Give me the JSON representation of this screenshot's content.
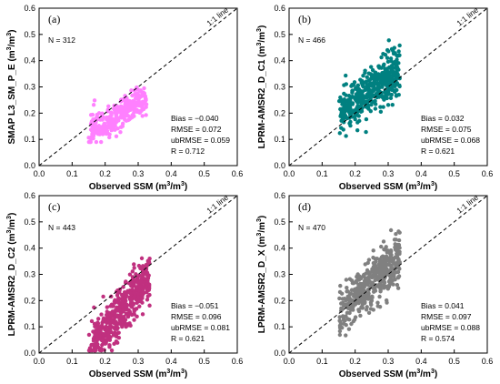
{
  "chart_data": [
    {
      "type": "scatter",
      "panel_label": "(a)",
      "n_label": "N = 312",
      "ylabel": "SMAP L3_SM_P_E",
      "xlabel": "Observed SSM",
      "unit_main": "(m",
      "unit_sup": "3",
      "unit_mid": "/m",
      "unit_end": ")",
      "line_label": "1:1 line",
      "color": "#ff80ff",
      "xlim": [
        0.0,
        0.6
      ],
      "ylim": [
        0.0,
        0.6
      ],
      "xticks": [
        "0.0",
        "0.1",
        "0.2",
        "0.3",
        "0.4",
        "0.5",
        "0.6"
      ],
      "yticks": [
        "0.0",
        "0.1",
        "0.2",
        "0.3",
        "0.4",
        "0.5",
        "0.6"
      ],
      "stats": [
        "Bias = −0.040",
        "RMSE = 0.072",
        "ubRMSE = 0.059",
        "R = 0.712"
      ],
      "cloud": {
        "n": 312,
        "seed": 11,
        "xmin": 0.15,
        "xmax": 0.325,
        "yint": 0.02,
        "yslope": 0.72,
        "spread": 0.055,
        "ylo": 0.09,
        "yhi": 0.48
      }
    },
    {
      "type": "scatter",
      "panel_label": "(b)",
      "n_label": "N = 466",
      "ylabel": "LPRM-AMSR2_D_C1",
      "xlabel": "Observed SSM",
      "unit_main": "(m",
      "unit_sup": "3",
      "unit_mid": "/m",
      "unit_end": ")",
      "line_label": "1:1 line",
      "color": "#008080",
      "xlim": [
        0.0,
        0.6
      ],
      "ylim": [
        0.0,
        0.6
      ],
      "xticks": [
        "0.0",
        "0.1",
        "0.2",
        "0.3",
        "0.4",
        "0.5",
        "0.6"
      ],
      "yticks": [
        "0.0",
        "0.1",
        "0.2",
        "0.3",
        "0.4",
        "0.5",
        "0.6"
      ],
      "stats": [
        "Bias = 0.032",
        "RMSE = 0.075",
        "ubRMSE = 0.068",
        "R = 0.621"
      ],
      "cloud": {
        "n": 466,
        "seed": 23,
        "xmin": 0.15,
        "xmax": 0.335,
        "yint": 0.08,
        "yslope": 0.85,
        "spread": 0.075,
        "ylo": 0.02,
        "yhi": 0.49
      }
    },
    {
      "type": "scatter",
      "panel_label": "(c)",
      "n_label": "N = 443",
      "ylabel": "LPRM-AMSR2_D_C2",
      "xlabel": "Observed SSM",
      "unit_main": "(m",
      "unit_sup": "3",
      "unit_mid": "/m",
      "unit_end": ")",
      "line_label": "1:1 line",
      "color": "#c0307f",
      "xlim": [
        0.0,
        0.6
      ],
      "ylim": [
        0.0,
        0.6
      ],
      "xticks": [
        "0.0",
        "0.1",
        "0.2",
        "0.3",
        "0.4",
        "0.5",
        "0.6"
      ],
      "yticks": [
        "0.0",
        "0.1",
        "0.2",
        "0.3",
        "0.4",
        "0.5",
        "0.6"
      ],
      "stats": [
        "Bias = −0.051",
        "RMSE = 0.096",
        "ubRMSE = 0.081",
        "R = 0.621"
      ],
      "cloud": {
        "n": 443,
        "seed": 37,
        "xmin": 0.15,
        "xmax": 0.335,
        "yint": -0.2,
        "yslope": 1.45,
        "spread": 0.08,
        "ylo": 0.01,
        "yhi": 0.5
      }
    },
    {
      "type": "scatter",
      "panel_label": "(d)",
      "n_label": "N = 470",
      "ylabel": "LPRM-AMSR2_D_X",
      "xlabel": "Observed SSM",
      "unit_main": "(m",
      "unit_sup": "3",
      "unit_mid": "/m",
      "unit_end": ")",
      "line_label": "1:1 line",
      "color": "#808080",
      "xlim": [
        0.0,
        0.6
      ],
      "ylim": [
        0.0,
        0.6
      ],
      "xticks": [
        "0.0",
        "0.1",
        "0.2",
        "0.3",
        "0.4",
        "0.5",
        "0.6"
      ],
      "yticks": [
        "0.0",
        "0.1",
        "0.2",
        "0.3",
        "0.4",
        "0.5",
        "0.6"
      ],
      "stats": [
        "Bias = 0.041",
        "RMSE = 0.097",
        "ubRMSE = 0.088",
        "R = 0.574"
      ],
      "cloud": {
        "n": 470,
        "seed": 53,
        "xmin": 0.15,
        "xmax": 0.335,
        "yint": -0.03,
        "yslope": 1.2,
        "spread": 0.085,
        "ylo": 0.05,
        "yhi": 0.55
      }
    }
  ]
}
